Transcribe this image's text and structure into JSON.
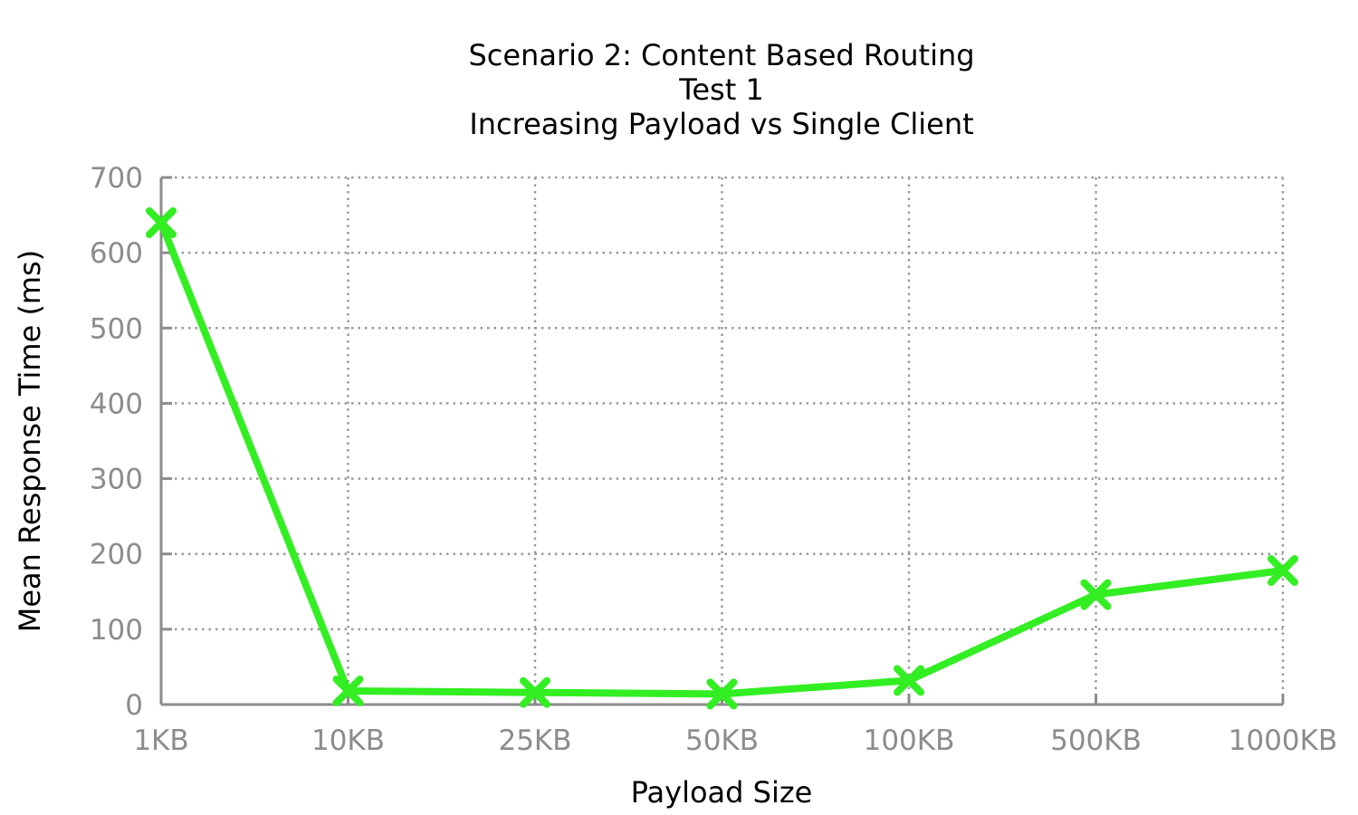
{
  "chart_data": {
    "type": "line",
    "title": [
      "Scenario 2: Content Based Routing",
      "Test 1",
      "Increasing Payload vs Single Client"
    ],
    "xlabel": "Payload Size",
    "ylabel": "Mean Response Time (ms)",
    "categories": [
      "1KB",
      "10KB",
      "25KB",
      "50KB",
      "100KB",
      "500KB",
      "1000KB"
    ],
    "series": [
      {
        "values": [
          640,
          18,
          16,
          14,
          32,
          146,
          178
        ],
        "color": "#33ee22",
        "marker": "x-icon"
      }
    ],
    "ylim": [
      0,
      700
    ],
    "yticks": [
      0,
      100,
      200,
      300,
      400,
      500,
      600,
      700
    ],
    "grid": true,
    "legend": "none"
  }
}
